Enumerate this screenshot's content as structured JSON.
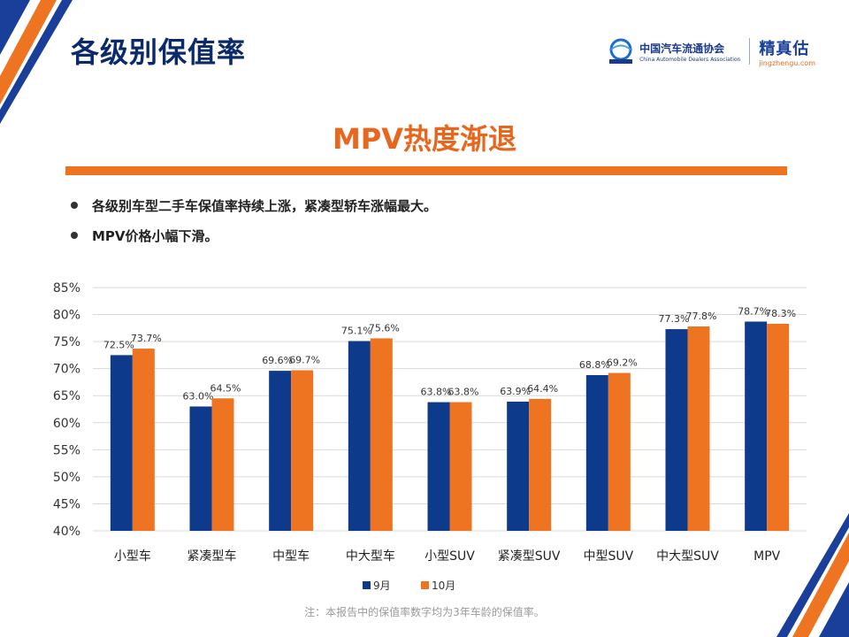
{
  "header": {
    "title": "各级别保值率",
    "logos": {
      "cada_cn": "中国汽车流通协会",
      "cada_en": "China Automobile Dealers Association",
      "jzg_cn": "精真估",
      "jzg_url": "jingzhengu.com"
    }
  },
  "headline": "MPV热度渐退",
  "bullets": [
    "各级别车型二手车保值率持续上涨，紧凑型轿车涨幅最大。",
    "MPV价格小幅下滑。"
  ],
  "chart_data": {
    "type": "bar",
    "categories": [
      "小型车",
      "紧凑型车",
      "中型车",
      "中大型车",
      "小型SUV",
      "紧凑型SUV",
      "中型SUV",
      "中大型SUV",
      "MPV"
    ],
    "series": [
      {
        "name": "9月",
        "values": [
          72.5,
          63.0,
          69.6,
          75.1,
          63.8,
          63.9,
          68.8,
          77.3,
          78.7
        ],
        "color": "#0e3a8c"
      },
      {
        "name": "10月",
        "values": [
          73.7,
          64.5,
          69.7,
          75.6,
          63.8,
          64.4,
          69.2,
          77.8,
          78.3
        ],
        "color": "#ee7421"
      }
    ],
    "yticks": [
      "85%",
      "80%",
      "75%",
      "70%",
      "65%",
      "60%",
      "55%",
      "50%",
      "45%",
      "40%"
    ],
    "ylim": [
      40,
      85
    ],
    "grid": true,
    "legend": "bottom"
  },
  "footnote": "注：本报告中的保值率数字均为3年车龄的保值率。",
  "colors": {
    "navy": "#0e3a8c",
    "orange": "#ee7421",
    "title": "#0a2a6b"
  }
}
